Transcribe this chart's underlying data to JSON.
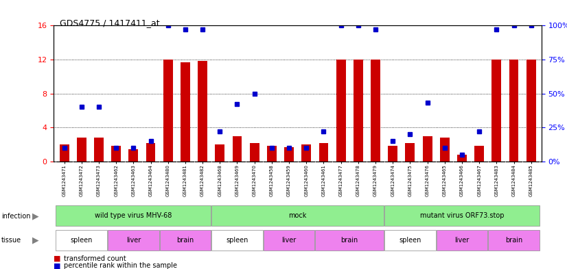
{
  "title": "GDS4775 / 1417411_at",
  "samples": [
    "GSM1243471",
    "GSM1243472",
    "GSM1243473",
    "GSM1243462",
    "GSM1243463",
    "GSM1243464",
    "GSM1243480",
    "GSM1243481",
    "GSM1243482",
    "GSM1243468",
    "GSM1243469",
    "GSM1243470",
    "GSM1243458",
    "GSM1243459",
    "GSM1243460",
    "GSM1243461",
    "GSM1243477",
    "GSM1243478",
    "GSM1243479",
    "GSM1243474",
    "GSM1243475",
    "GSM1243476",
    "GSM1243465",
    "GSM1243466",
    "GSM1243467",
    "GSM1243483",
    "GSM1243484",
    "GSM1243485"
  ],
  "red_values": [
    2.0,
    2.8,
    2.8,
    1.8,
    1.4,
    2.2,
    12.0,
    11.7,
    11.8,
    2.0,
    3.0,
    2.2,
    1.8,
    1.7,
    2.0,
    2.2,
    12.0,
    12.0,
    12.0,
    1.8,
    2.2,
    3.0,
    2.8,
    0.8,
    1.8,
    12.0,
    12.0,
    12.0
  ],
  "blue_values": [
    10.0,
    40.0,
    40.0,
    10.0,
    10.0,
    15.0,
    100.0,
    97.0,
    97.0,
    22.0,
    42.0,
    50.0,
    10.0,
    10.0,
    10.0,
    22.0,
    100.0,
    100.0,
    97.0,
    15.0,
    20.0,
    43.0,
    10.0,
    5.0,
    22.0,
    97.0,
    100.0,
    100.0
  ],
  "inf_groups": [
    {
      "label": "wild type virus MHV-68",
      "start": 0,
      "end": 9
    },
    {
      "label": "mock",
      "start": 9,
      "end": 19
    },
    {
      "label": "mutant virus ORF73.stop",
      "start": 19,
      "end": 28
    }
  ],
  "tissue_groups": [
    {
      "label": "spleen",
      "start": 0,
      "end": 3,
      "color": "#ffffff"
    },
    {
      "label": "liver",
      "start": 3,
      "end": 6,
      "color": "#ee82ee"
    },
    {
      "label": "brain",
      "start": 6,
      "end": 9,
      "color": "#ee82ee"
    },
    {
      "label": "spleen",
      "start": 9,
      "end": 12,
      "color": "#ffffff"
    },
    {
      "label": "liver",
      "start": 12,
      "end": 15,
      "color": "#ee82ee"
    },
    {
      "label": "brain",
      "start": 15,
      "end": 19,
      "color": "#ee82ee"
    },
    {
      "label": "spleen",
      "start": 19,
      "end": 22,
      "color": "#ffffff"
    },
    {
      "label": "liver",
      "start": 22,
      "end": 25,
      "color": "#ee82ee"
    },
    {
      "label": "brain",
      "start": 25,
      "end": 28,
      "color": "#ee82ee"
    }
  ],
  "inf_color": "#90ee90",
  "ylim_left": [
    0,
    16
  ],
  "ylim_right": [
    0,
    100
  ],
  "yticks_left": [
    0,
    4,
    8,
    12,
    16
  ],
  "yticks_right": [
    0,
    25,
    50,
    75,
    100
  ],
  "bar_color": "#cc0000",
  "dot_color": "#0000cc"
}
